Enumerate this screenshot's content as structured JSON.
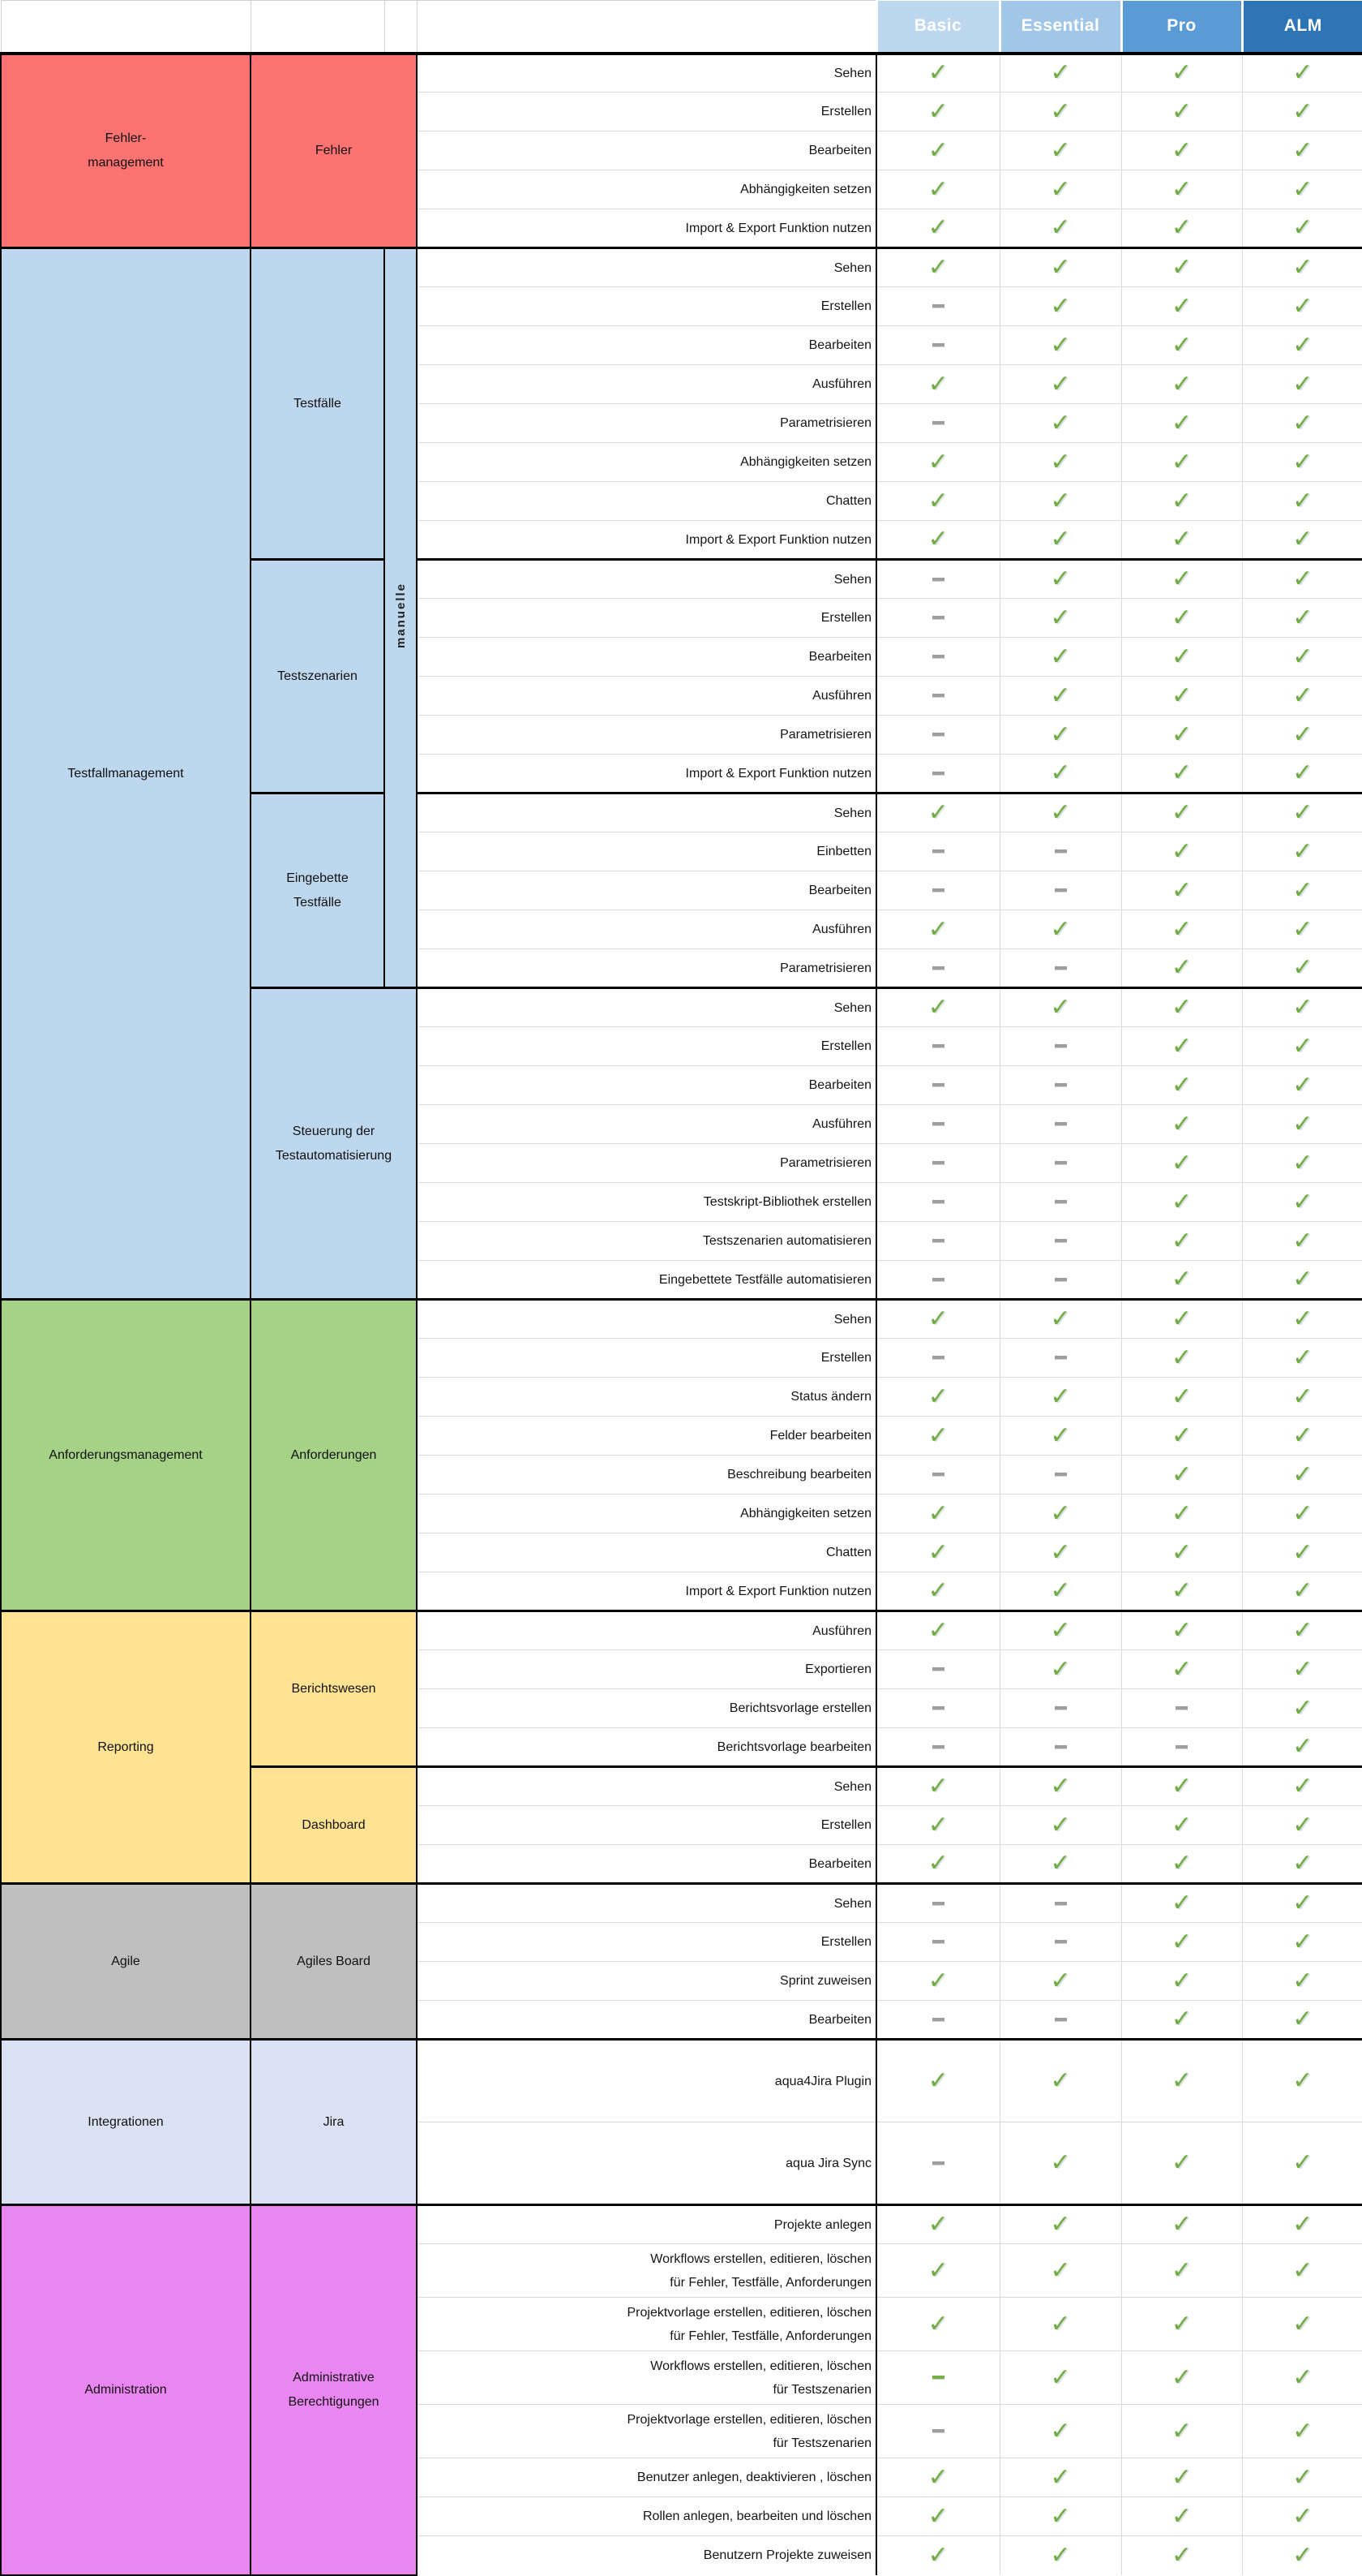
{
  "header": {
    "tiers": [
      {
        "label": "Basic",
        "color": "#BDD7EE"
      },
      {
        "label": "Essential",
        "color": "#A2C6E8"
      },
      {
        "label": "Pro",
        "color": "#5B9BD5"
      },
      {
        "label": "ALM",
        "color": "#2E75B6"
      }
    ]
  },
  "marks": {
    "check_glyph": "✓",
    "legend": {
      "c": "included (check)",
      "d": "not included (gray dash)",
      "g": "not included (green dash)"
    },
    "check_color": "#70AD47",
    "dash_color": "#9E9E9E",
    "dash_green_color": "#72B043"
  },
  "colors": {
    "border_black": "#000000",
    "grid_gray": "#D9D9D9",
    "fehler_red": "#FC7372",
    "testfall_blue": "#BDD7EE",
    "anforderung_green": "#A5D287",
    "reporting_yellow": "#FFE393",
    "agile_gray": "#BFBFBF",
    "integration_lavender": "#D9E1F2",
    "administration_violet": "#EA86F2"
  },
  "blocks": [
    {
      "category": "Fehler-management",
      "category_lines": [
        "Fehler-",
        "management"
      ],
      "color": "#FC7372",
      "subs": [
        {
          "name": "Fehler",
          "rows": [
            {
              "label": "Sehen",
              "marks": "cccc"
            },
            {
              "label": "Erstellen",
              "marks": "cccc"
            },
            {
              "label": "Bearbeiten",
              "marks": "cccc"
            },
            {
              "label": "Abhängigkeiten setzen",
              "marks": "cccc"
            },
            {
              "label": "Import & Export Funktion nutzen",
              "marks": "cccc"
            }
          ]
        }
      ]
    },
    {
      "category": "Testfallmanagement",
      "category_lines": [
        "Testfallmanagement"
      ],
      "color": "#BDD7EE",
      "subs": [
        {
          "name": "Testfälle",
          "name_lines": [
            "Testfälle"
          ],
          "narrow": true,
          "rot_label": "manuelle",
          "rot_rows": 19,
          "rows": [
            {
              "label": "Sehen",
              "marks": "cccc"
            },
            {
              "label": "Erstellen",
              "marks": "dccc"
            },
            {
              "label": "Bearbeiten",
              "marks": "dccc"
            },
            {
              "label": "Ausführen",
              "marks": "cccc"
            },
            {
              "label": "Parametrisieren",
              "marks": "dccc"
            },
            {
              "label": "Abhängigkeiten setzen",
              "marks": "cccc"
            },
            {
              "label": "Chatten",
              "marks": "cccc"
            },
            {
              "label": "Import & Export Funktion nutzen",
              "marks": "cccc"
            }
          ]
        },
        {
          "name": "Testszenarien",
          "name_lines": [
            "Testszenarien"
          ],
          "narrow": true,
          "rows": [
            {
              "label": "Sehen",
              "marks": "dccc"
            },
            {
              "label": "Erstellen",
              "marks": "dccc"
            },
            {
              "label": "Bearbeiten",
              "marks": "dccc"
            },
            {
              "label": "Ausführen",
              "marks": "dccc"
            },
            {
              "label": "Parametrisieren",
              "marks": "dccc"
            },
            {
              "label": "Import & Export Funktion nutzen",
              "marks": "dccc"
            }
          ]
        },
        {
          "name": "Eingebette Testfälle",
          "name_lines": [
            "Eingebette",
            "Testfälle"
          ],
          "narrow": true,
          "rows": [
            {
              "label": "Sehen",
              "marks": "cccc"
            },
            {
              "label": "Einbetten",
              "marks": "ddcc"
            },
            {
              "label": "Bearbeiten",
              "marks": "ddcc"
            },
            {
              "label": "Ausführen",
              "marks": "cccc"
            },
            {
              "label": "Parametrisieren",
              "marks": "ddcc"
            }
          ]
        },
        {
          "name": "Steuerung der Testautomatisierung",
          "name_lines": [
            "Steuerung der",
            "Testautomatisierung"
          ],
          "rows": [
            {
              "label": "Sehen",
              "marks": "cccc"
            },
            {
              "label": "Erstellen",
              "marks": "ddcc"
            },
            {
              "label": "Bearbeiten",
              "marks": "ddcc"
            },
            {
              "label": "Ausführen",
              "marks": "ddcc"
            },
            {
              "label": "Parametrisieren",
              "marks": "ddcc"
            },
            {
              "label": "Testskript-Bibliothek erstellen",
              "marks": "ddcc"
            },
            {
              "label": "Testszenarien automatisieren",
              "marks": "ddcc"
            },
            {
              "label": "Eingebettete Testfälle automatisieren",
              "marks": "ddcc"
            }
          ]
        }
      ]
    },
    {
      "category": "Anforderungsmanagement",
      "category_lines": [
        "Anforderungsmanagement"
      ],
      "color": "#A5D287",
      "subs": [
        {
          "name": "Anforderungen",
          "rows": [
            {
              "label": "Sehen",
              "marks": "cccc"
            },
            {
              "label": "Erstellen",
              "marks": "ddcc"
            },
            {
              "label": "Status ändern",
              "marks": "cccc"
            },
            {
              "label": "Felder bearbeiten",
              "marks": "cccc"
            },
            {
              "label": "Beschreibung bearbeiten",
              "marks": "ddcc"
            },
            {
              "label": "Abhängigkeiten setzen",
              "marks": "cccc"
            },
            {
              "label": "Chatten",
              "marks": "cccc"
            },
            {
              "label": "Import & Export Funktion nutzen",
              "marks": "cccc"
            }
          ]
        }
      ]
    },
    {
      "category": "Reporting",
      "category_lines": [
        "Reporting"
      ],
      "color": "#FFE393",
      "subs": [
        {
          "name": "Berichtswesen",
          "rows": [
            {
              "label": "Ausführen",
              "marks": "cccc"
            },
            {
              "label": "Exportieren",
              "marks": "dccc"
            },
            {
              "label": "Berichtsvorlage erstellen",
              "marks": "dddc"
            },
            {
              "label": "Berichtsvorlage bearbeiten",
              "marks": "dddc"
            }
          ]
        },
        {
          "name": "Dashboard",
          "rows": [
            {
              "label": "Sehen",
              "marks": "cccc"
            },
            {
              "label": "Erstellen",
              "marks": "cccc"
            },
            {
              "label": "Bearbeiten",
              "marks": "cccc"
            }
          ]
        }
      ]
    },
    {
      "category": "Agile",
      "category_lines": [
        "Agile"
      ],
      "color": "#BFBFBF",
      "subs": [
        {
          "name": "Agiles Board",
          "rows": [
            {
              "label": "Sehen",
              "marks": "ddcc"
            },
            {
              "label": "Erstellen",
              "marks": "ddcc"
            },
            {
              "label": "Sprint zuweisen",
              "marks": "cccc"
            },
            {
              "label": "Bearbeiten",
              "marks": "ddcc"
            }
          ]
        }
      ]
    },
    {
      "category": "Integrationen",
      "category_lines": [
        "Integrationen"
      ],
      "color": "#D9E1F2",
      "tall": true,
      "subs": [
        {
          "name": "Jira",
          "rows": [
            {
              "label": "aqua4Jira Plugin",
              "marks": "cccc"
            },
            {
              "label": "aqua Jira Sync",
              "marks": "dccc"
            }
          ]
        }
      ]
    },
    {
      "category": "Administration",
      "category_lines": [
        "Administration"
      ],
      "color": "#EA86F2",
      "subs": [
        {
          "name": "Administrative Berechtigungen",
          "name_lines": [
            "Administrative",
            "Berechtigungen"
          ],
          "rows": [
            {
              "label": "Projekte anlegen",
              "marks": "cccc"
            },
            {
              "label": "Workflows erstellen, editieren, löschen",
              "label2": "für Fehler, Testfälle, Anforderungen",
              "marks": "cccc"
            },
            {
              "label": "Projektvorlage erstellen, editieren, löschen",
              "label2": "für Fehler, Testfälle, Anforderungen",
              "marks": "cccc"
            },
            {
              "label": "Workflows erstellen, editieren, löschen",
              "label2": "für Testszenarien",
              "marks": "gccc"
            },
            {
              "label": "Projektvorlage erstellen, editieren, löschen",
              "label2": "für Testszenarien",
              "marks": "dccc"
            },
            {
              "label": "Benutzer anlegen, deaktivieren , löschen",
              "marks": "cccc"
            },
            {
              "label": "Rollen anlegen, bearbeiten und löschen",
              "marks": "cccc"
            },
            {
              "label": "Benutzern Projekte zuweisen",
              "marks": "cccc"
            }
          ]
        }
      ]
    }
  ]
}
